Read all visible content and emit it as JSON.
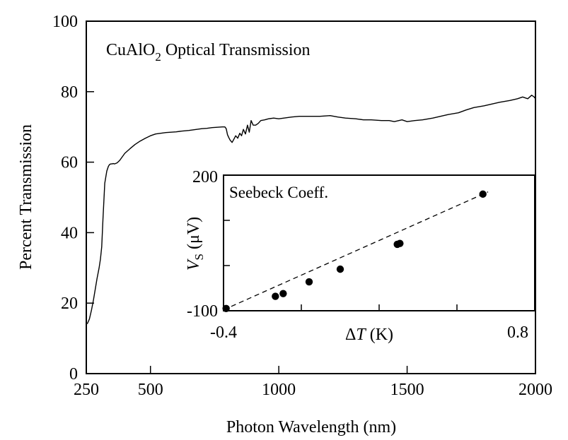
{
  "chart_data": [
    {
      "type": "line",
      "title_main": "CuAlO",
      "title_sub": "2",
      "title_rest": " Optical Transmission",
      "xlabel": "Photon Wavelength (nm)",
      "ylabel": "Percent Transmission",
      "xlim": [
        250,
        2000
      ],
      "ylim": [
        0,
        100
      ],
      "x_ticks": [
        250,
        500,
        1000,
        1500,
        2000
      ],
      "y_ticks": [
        0,
        20,
        40,
        60,
        80,
        100
      ],
      "x_tick_labels": [
        "250",
        "500",
        "1000",
        "1500",
        "2000"
      ],
      "y_tick_labels": [
        "0",
        "20",
        "40",
        "60",
        "80",
        "100"
      ],
      "grid": false,
      "series": [
        {
          "x": [
            250,
            255,
            262,
            270,
            278,
            285,
            292,
            300,
            305,
            310,
            315,
            322,
            330,
            336,
            340,
            345,
            350,
            355,
            360,
            370,
            380,
            390,
            400,
            420,
            440,
            460,
            480,
            500,
            520,
            540,
            560,
            580,
            600,
            620,
            650,
            680,
            700,
            720,
            740,
            760,
            780,
            790,
            795,
            800,
            805,
            810,
            818,
            825,
            832,
            840,
            848,
            855,
            862,
            870,
            878,
            885,
            892,
            900,
            910,
            920,
            930,
            945,
            960,
            980,
            1000,
            1020,
            1050,
            1080,
            1100,
            1130,
            1160,
            1200,
            1230,
            1260,
            1300,
            1330,
            1360,
            1400,
            1430,
            1450,
            1480,
            1500,
            1530,
            1560,
            1600,
            1630,
            1660,
            1700,
            1730,
            1760,
            1800,
            1830,
            1860,
            1900,
            1930,
            1950,
            1970,
            1985,
            1995,
            2000
          ],
          "y": [
            14,
            14.3,
            15.5,
            18,
            21,
            24,
            27,
            30,
            32.5,
            36,
            44,
            54,
            57.5,
            58.8,
            59.3,
            59.5,
            59.5,
            59.6,
            59.5,
            59.8,
            60.5,
            61.5,
            62.5,
            63.8,
            65,
            66,
            66.8,
            67.5,
            68,
            68.2,
            68.4,
            68.5,
            68.6,
            68.8,
            69,
            69.3,
            69.5,
            69.6,
            69.8,
            69.9,
            70,
            70,
            69.5,
            67.8,
            67,
            66.3,
            65.6,
            66.5,
            67.5,
            66.8,
            68.2,
            67.5,
            69.3,
            68,
            70.5,
            68.5,
            71.8,
            70.5,
            70.5,
            71,
            71.8,
            72,
            72.3,
            72.5,
            72.3,
            72.5,
            72.8,
            73,
            73,
            73,
            73,
            73.2,
            72.8,
            72.5,
            72.3,
            72,
            72,
            71.8,
            71.8,
            71.5,
            72,
            71.5,
            71.8,
            72,
            72.5,
            73,
            73.5,
            74,
            74.8,
            75.5,
            76,
            76.5,
            77,
            77.5,
            78,
            78.5,
            78,
            79,
            78.5,
            78
          ]
        }
      ]
    },
    {
      "type": "scatter",
      "title": "Seebeck Coeff.",
      "xlabel_prefix": "Δ",
      "xlabel_var": "T",
      "xlabel_unit": " (K)",
      "ylabel_var": "V",
      "ylabel_sub": "S",
      "ylabel_unit": " (μV)",
      "xlim": [
        -0.4,
        0.8
      ],
      "ylim": [
        -100,
        200
      ],
      "x_tick_labels": [
        "-0.4",
        "0.8"
      ],
      "y_tick_labels": [
        "200",
        "-100"
      ],
      "grid": false,
      "series": [
        {
          "x": [
            -0.39,
            -0.2,
            -0.17,
            -0.07,
            0.05,
            0.27,
            0.28,
            0.6
          ],
          "y": [
            -95,
            -68,
            -62,
            -36,
            -8,
            47,
            49,
            158
          ]
        }
      ],
      "fit_line": {
        "x": [
          -0.4,
          0.62
        ],
        "y": [
          -98,
          163
        ]
      }
    }
  ]
}
